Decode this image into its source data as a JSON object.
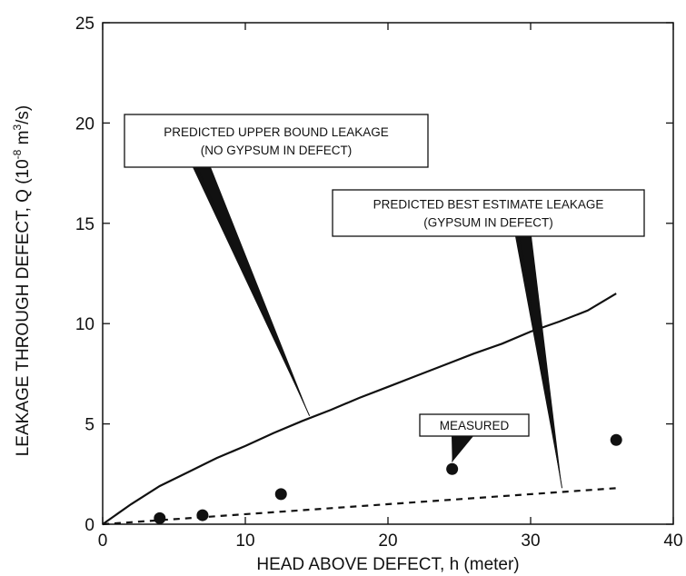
{
  "chart_data": {
    "type": "line",
    "title": "",
    "xlabel": "HEAD ABOVE DEFECT, h (meter)",
    "ylabel": {
      "prefix": "LEAKAGE THROUGH DEFECT, Q (10",
      "exp1": "-8",
      "mid": " m",
      "exp2": "3",
      "suffix": "/s)"
    },
    "xlim": [
      0,
      40
    ],
    "ylim": [
      0,
      25
    ],
    "xticks": [
      0,
      10,
      20,
      30,
      40
    ],
    "yticks": [
      0,
      5,
      10,
      15,
      20,
      25
    ],
    "grid": false,
    "series": [
      {
        "name": "PREDICTED UPPER BOUND LEAKAGE (NO GYPSUM IN DEFECT)",
        "style": "solid",
        "x": [
          0,
          2,
          4,
          6,
          8,
          10,
          12,
          14,
          16,
          18,
          20,
          22,
          24,
          26,
          28,
          30,
          32,
          34,
          36
        ],
        "y": [
          0,
          1.0,
          1.9,
          2.6,
          3.3,
          3.9,
          4.55,
          5.15,
          5.7,
          6.3,
          6.85,
          7.4,
          7.95,
          8.5,
          9.0,
          9.6,
          10.1,
          10.65,
          11.5
        ]
      },
      {
        "name": "PREDICTED BEST ESTIMATE LEAKAGE (GYPSUM IN DEFECT)",
        "style": "dashed",
        "x": [
          0,
          36
        ],
        "y": [
          0,
          1.8
        ]
      },
      {
        "name": "MEASURED",
        "style": "markers",
        "x": [
          4,
          7,
          12.5,
          24.5,
          36
        ],
        "y": [
          0.3,
          0.45,
          1.5,
          2.75,
          4.2
        ]
      }
    ],
    "annotations": [
      {
        "lines": [
          "PREDICTED UPPER BOUND LEAKAGE",
          "(NO GYPSUM IN DEFECT)"
        ],
        "points_to": [
          14.5,
          5.4
        ]
      },
      {
        "lines": [
          "PREDICTED BEST ESTIMATE LEAKAGE",
          "(GYPSUM IN DEFECT)"
        ],
        "points_to": [
          32.2,
          1.8
        ]
      },
      {
        "lines": [
          "MEASURED"
        ],
        "points_to": [
          24.5,
          3.1
        ]
      }
    ]
  }
}
